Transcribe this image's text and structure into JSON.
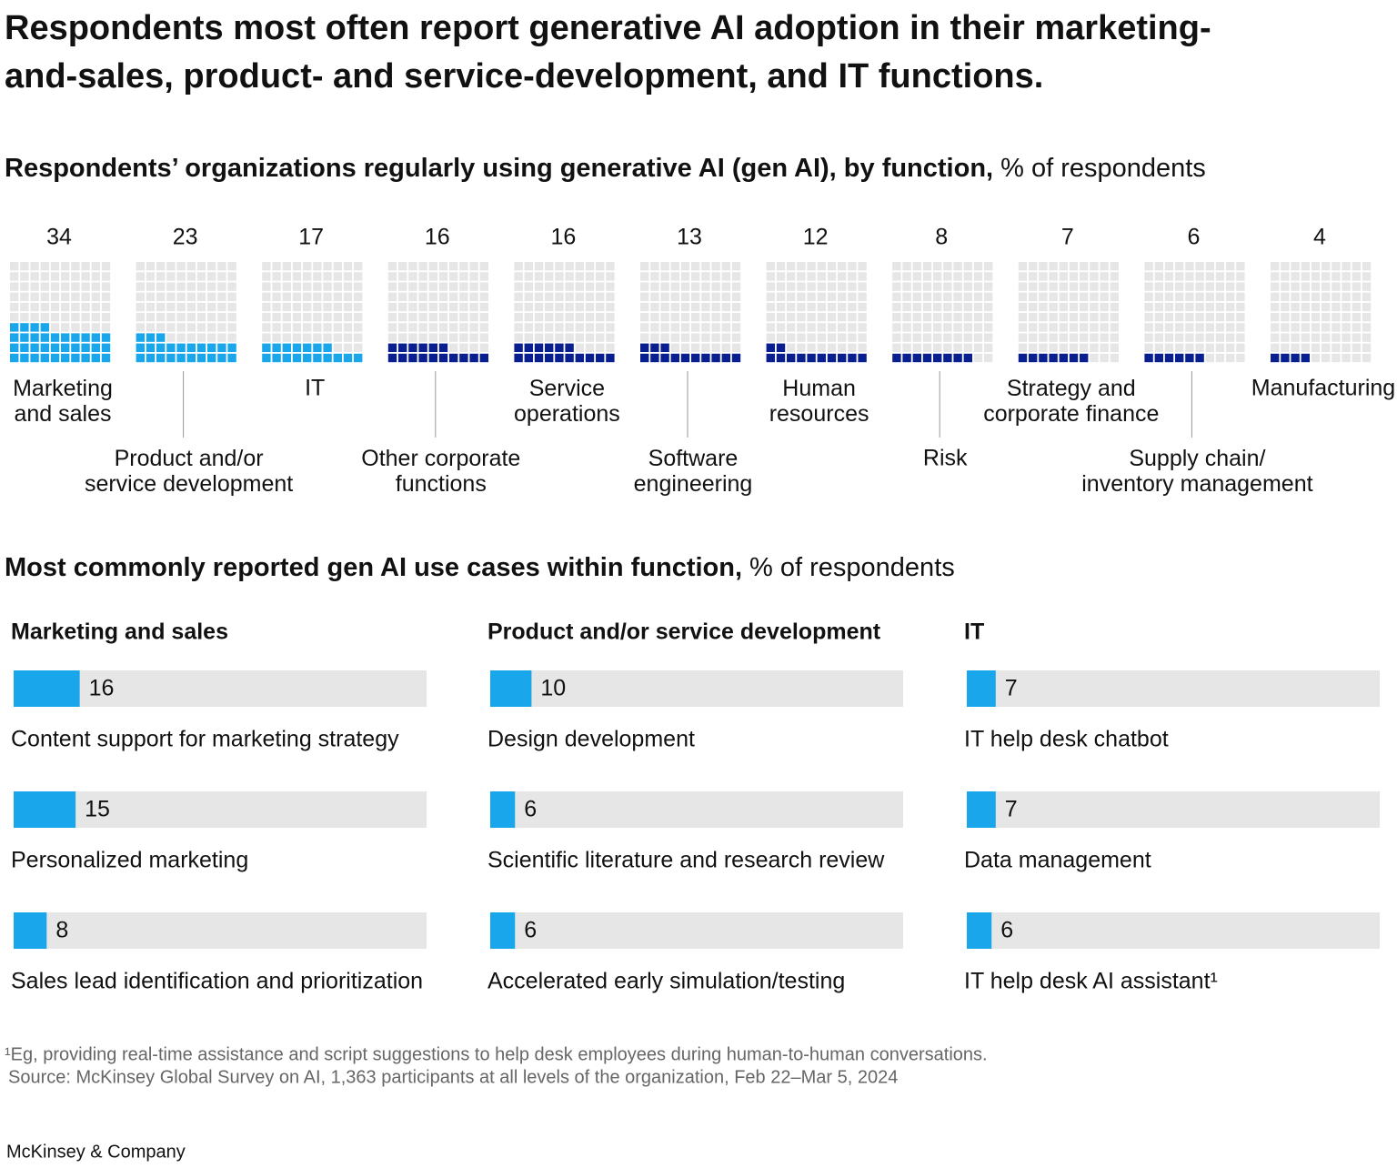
{
  "title": "Respondents most often report generative AI adoption in their marketing-\nand-sales, product- and service-development, and IT functions.",
  "section_title": {
    "bold": "Most commonly reported gen AI use cases within function,",
    "unit": "% of respondents"
  },
  "footnote": "¹Eg, providing real-time assistance and script suggestions to help desk employees during human-to-human conversations.",
  "source": "Source: McKinsey Global Survey on AI, 1,363 participants at all levels of the organization, Feb 22–Mar 5, 2024",
  "brand": "McKinsey & Company",
  "chart_data": [
    {
      "type": "waffle",
      "title": "Respondents’ organizations regularly using generative AI (gen AI), by function,",
      "subtitle": "% of respondents",
      "categories": [
        "Marketing\nand sales",
        "Product and/or\nservice development",
        "IT",
        "Other corporate\nfunctions",
        "Service\noperations",
        "Software\nengineering",
        "Human\nresources",
        "Risk",
        "Strategy and\ncorporate finance",
        "Supply chain/\ninventory management",
        "Manufacturing"
      ],
      "values": [
        34,
        23,
        17,
        16,
        16,
        13,
        12,
        8,
        7,
        6,
        4
      ],
      "colors": [
        "#1aa6ea",
        "#1aa6ea",
        "#1aa6ea",
        "#0a1f8f",
        "#0a1f8f",
        "#0a1f8f",
        "#0a1f8f",
        "#0a1f8f",
        "#0a1f8f",
        "#0a1f8f",
        "#0a1f8f"
      ]
    },
    {
      "type": "bar",
      "title": "Marketing and sales",
      "categories": [
        "Content support for marketing strategy",
        "Personalized marketing",
        "Sales lead identification and prioritization"
      ],
      "values": [
        16,
        15,
        8
      ],
      "color": "#1aa6ea",
      "xlim": [
        0,
        100
      ]
    },
    {
      "type": "bar",
      "title": "Product and/or service development",
      "categories": [
        "Design development",
        "Scientific literature and research review",
        "Accelerated early simulation/testing"
      ],
      "values": [
        10,
        6,
        6
      ],
      "color": "#1aa6ea",
      "xlim": [
        0,
        100
      ]
    },
    {
      "type": "bar",
      "title": "IT",
      "categories": [
        "IT help desk chatbot",
        "Data management",
        "IT help desk AI assistant¹"
      ],
      "values": [
        7,
        7,
        6
      ],
      "color": "#1aa6ea",
      "xlim": [
        0,
        100
      ]
    }
  ]
}
